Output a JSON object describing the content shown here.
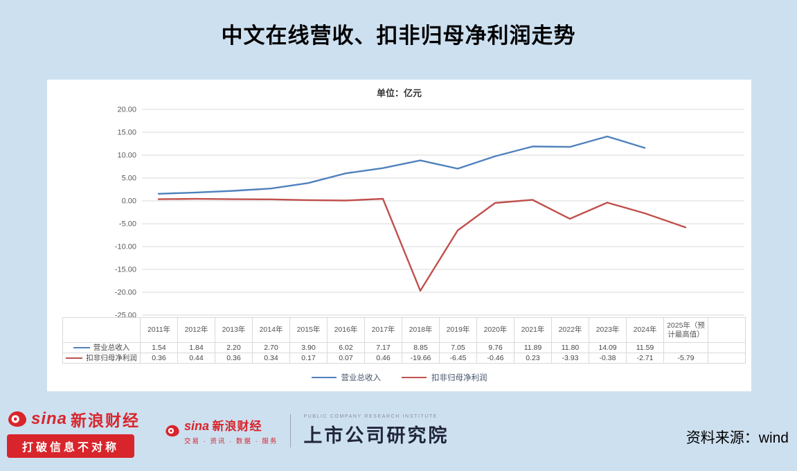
{
  "page": {
    "title": "中文在线营收、扣非归母净利润走势",
    "background": "#cde0f0"
  },
  "chart_data": {
    "type": "line",
    "title": "中文在线营收、扣非归母净利润走势",
    "unit_label": "单位：亿元",
    "categories": [
      "2011年",
      "2012年",
      "2013年",
      "2014年",
      "2015年",
      "2016年",
      "2017年",
      "2018年",
      "2019年",
      "2020年",
      "2021年",
      "2022年",
      "2023年",
      "2024年",
      "2025年（预计最高值）"
    ],
    "series": [
      {
        "name": "营业总收入",
        "slug": "revenue-line",
        "color": "#4f81bd",
        "values": [
          1.54,
          1.84,
          2.2,
          2.7,
          3.9,
          6.02,
          7.17,
          8.85,
          7.05,
          9.76,
          11.89,
          11.8,
          14.09,
          11.59,
          null
        ],
        "labels": [
          "1.54",
          "1.84",
          "2.20",
          "2.70",
          "3.90",
          "6.02",
          "7.17",
          "8.85",
          "7.05",
          "9.76",
          "11.89",
          "11.80",
          "14.09",
          "11.59",
          ""
        ]
      },
      {
        "name": "扣非归母净利润",
        "slug": "net-profit-line",
        "color": "#c0504d",
        "values": [
          0.36,
          0.44,
          0.36,
          0.34,
          0.17,
          0.07,
          0.46,
          -19.66,
          -6.45,
          -0.46,
          0.23,
          -3.93,
          -0.38,
          -2.71,
          -5.79
        ],
        "labels": [
          "0.36",
          "0.44",
          "0.36",
          "0.34",
          "0.17",
          "0.07",
          "0.46",
          "-19.66",
          "-6.45",
          "-0.46",
          "0.23",
          "-3.93",
          "-0.38",
          "-2.71",
          "-5.79"
        ]
      }
    ],
    "ylim": [
      -25,
      20
    ],
    "ytick_step": 5,
    "ytick_labels": [
      "20.00",
      "15.00",
      "10.00",
      "5.00",
      "0.00",
      "-5.00",
      "-10.00",
      "-15.00",
      "-20.00",
      "-25.00"
    ],
    "grid": true,
    "grid_color": "#d9d9d9",
    "legend_position": "bottom"
  },
  "footer": {
    "sina_brand": "sina",
    "sina_name": "新浪财经",
    "sina_slogan": "打破信息不对称",
    "sina_services": "交易 · 资讯 · 数据 · 服务",
    "institute_caption": "PUBLIC COMPANY RESEARCH INSTITUTE",
    "institute_name": "上市公司研究院",
    "source": "资料来源：wind"
  }
}
